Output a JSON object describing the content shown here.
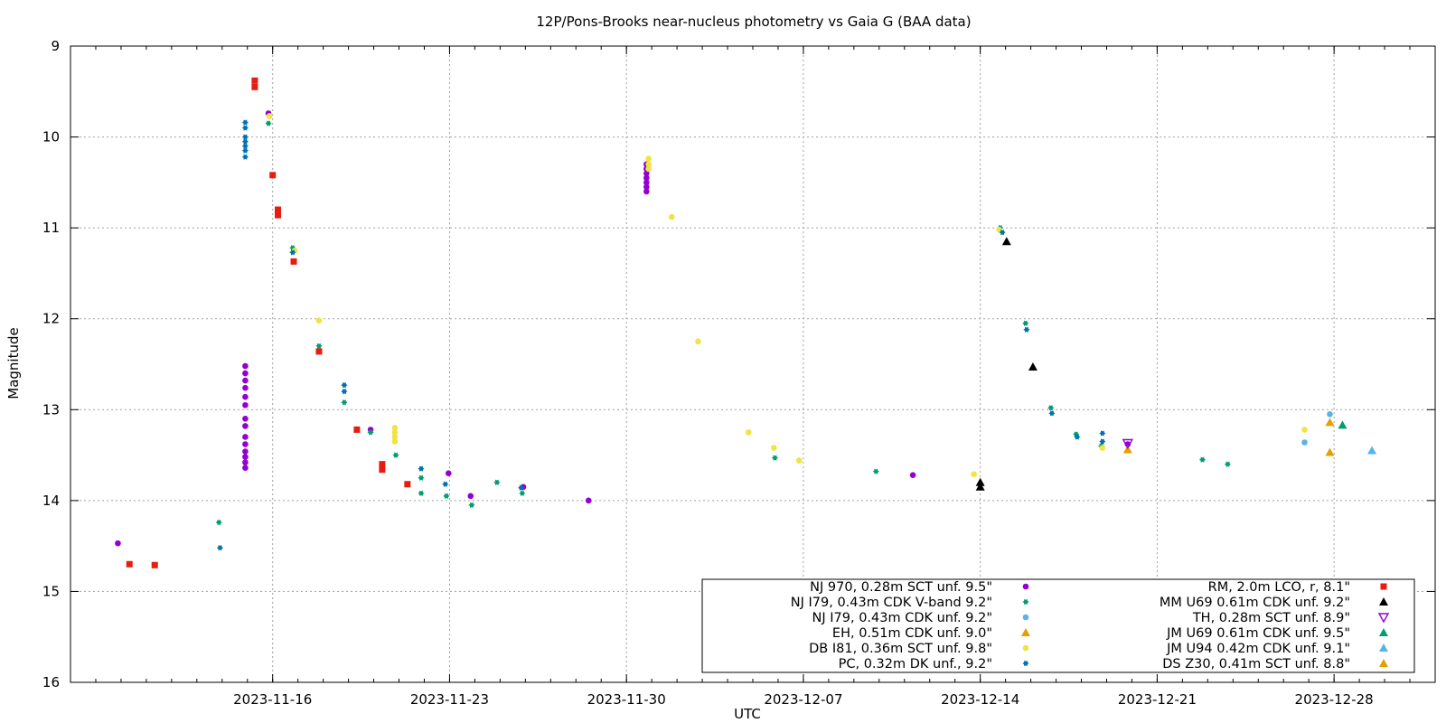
{
  "chart_data": {
    "type": "scatter",
    "title": "12P/Pons-Brooks near-nucleus photometry vs Gaia G (BAA data)",
    "xlabel": "UTC",
    "ylabel": "Magnitude",
    "xlim": [
      "2023-11-08T00:00",
      "2024-01-01T00:00"
    ],
    "ylim": [
      16,
      9
    ],
    "y_inverted": true,
    "grid": true,
    "legend_position": "bottom-right",
    "xticks": [
      "2023-11-16",
      "2023-11-23",
      "2023-11-30",
      "2023-12-07",
      "2023-12-14",
      "2023-12-21",
      "2023-12-28"
    ],
    "yticks": [
      9,
      10,
      11,
      12,
      13,
      14,
      15,
      16
    ],
    "series": [
      {
        "name": "NJ 970, 0.28m SCT unf. 9.5\"",
        "color": "#9400d3",
        "marker": "dot",
        "points": [
          [
            "2023-11-09T21:00",
            14.47
          ],
          [
            "2023-11-14T22:00",
            12.52
          ],
          [
            "2023-11-14T22:00",
            12.6
          ],
          [
            "2023-11-14T22:00",
            12.68
          ],
          [
            "2023-11-14T22:00",
            12.76
          ],
          [
            "2023-11-14T22:00",
            12.86
          ],
          [
            "2023-11-14T22:00",
            12.95
          ],
          [
            "2023-11-14T22:00",
            13.1
          ],
          [
            "2023-11-14T22:00",
            13.18
          ],
          [
            "2023-11-14T22:00",
            13.3
          ],
          [
            "2023-11-14T22:00",
            13.38
          ],
          [
            "2023-11-14T22:00",
            13.46
          ],
          [
            "2023-11-14T22:00",
            13.52
          ],
          [
            "2023-11-14T22:00",
            13.58
          ],
          [
            "2023-11-14T22:00",
            13.64
          ],
          [
            "2023-11-15T20:00",
            9.74
          ],
          [
            "2023-11-19T21:00",
            13.22
          ],
          [
            "2023-11-22T23:00",
            13.7
          ],
          [
            "2023-11-23T20:00",
            13.95
          ],
          [
            "2023-11-25T22:00",
            13.85
          ],
          [
            "2023-11-28T12:00",
            14.0
          ],
          [
            "2023-11-30T19:00",
            10.55
          ],
          [
            "2023-11-30T19:00",
            10.5
          ],
          [
            "2023-11-30T19:00",
            10.45
          ],
          [
            "2023-11-30T19:00",
            10.4
          ],
          [
            "2023-11-30T19:00",
            10.35
          ],
          [
            "2023-11-30T19:00",
            10.3
          ],
          [
            "2023-11-30T19:00",
            10.6
          ],
          [
            "2023-12-11T08:00",
            13.72
          ],
          [
            "2023-12-19T20:00",
            13.38
          ]
        ]
      },
      {
        "name": "NJ I79, 0.43m CDK V-band 9.2\"",
        "color": "#009e73",
        "marker": "star",
        "points": [
          [
            "2023-11-13T21:00",
            14.24
          ],
          [
            "2023-11-15T20:00",
            9.85
          ],
          [
            "2023-11-16T19:00",
            11.22
          ],
          [
            "2023-11-17T20:00",
            12.3
          ],
          [
            "2023-11-18T20:00",
            12.92
          ],
          [
            "2023-11-19T21:00",
            13.25
          ],
          [
            "2023-11-20T21:00",
            13.5
          ],
          [
            "2023-11-21T21:00",
            13.75
          ],
          [
            "2023-11-21T21:00",
            13.92
          ],
          [
            "2023-11-22T21:00",
            13.95
          ],
          [
            "2023-11-23T21:00",
            14.05
          ],
          [
            "2023-11-24T21:00",
            13.8
          ],
          [
            "2023-11-25T21:00",
            13.92
          ],
          [
            "2023-12-05T21:00",
            13.53
          ],
          [
            "2023-12-09T21:00",
            13.68
          ],
          [
            "2023-12-14T19:00",
            11.0
          ],
          [
            "2023-12-15T19:00",
            12.05
          ],
          [
            "2023-12-16T19:00",
            12.98
          ],
          [
            "2023-12-17T19:00",
            13.27
          ],
          [
            "2023-12-18T19:00",
            13.4
          ],
          [
            "2023-12-22T19:00",
            13.55
          ],
          [
            "2023-12-23T19:00",
            13.6
          ]
        ]
      },
      {
        "name": "NJ I79, 0.43m CDK unf. 9.2\"",
        "color": "#56b4e9",
        "marker": "dot",
        "points": [
          [
            "2023-12-26T20:00",
            13.36
          ],
          [
            "2023-12-27T20:00",
            13.05
          ]
        ]
      },
      {
        "name": "EH, 0.51m CDK unf. 9.0\"",
        "color": "#e69f00",
        "marker": "triangle",
        "points": [
          [
            "2023-12-19T20:00",
            13.44
          ],
          [
            "2023-12-27T20:00",
            13.14
          ]
        ]
      },
      {
        "name": "DB I81, 0.36m SCT unf. 9.8\"",
        "color": "#f0e442",
        "marker": "dot",
        "points": [
          [
            "2023-11-15T21:00",
            9.77
          ],
          [
            "2023-11-16T21:00",
            11.25
          ],
          [
            "2023-11-17T20:00",
            12.02
          ],
          [
            "2023-11-20T20:00",
            13.2
          ],
          [
            "2023-11-20T20:00",
            13.25
          ],
          [
            "2023-11-20T20:00",
            13.3
          ],
          [
            "2023-11-20T20:00",
            13.35
          ],
          [
            "2023-11-30T21:00",
            10.24
          ],
          [
            "2023-11-30T21:00",
            10.3
          ],
          [
            "2023-11-30T21:00",
            10.35
          ],
          [
            "2023-12-01T19:00",
            10.88
          ],
          [
            "2023-12-02T20:00",
            12.25
          ],
          [
            "2023-12-04T20:00",
            13.25
          ],
          [
            "2023-12-05T20:00",
            13.42
          ],
          [
            "2023-12-06T20:00",
            13.56
          ],
          [
            "2023-12-13T18:00",
            13.71
          ],
          [
            "2023-12-14T18:00",
            11.02
          ],
          [
            "2023-12-18T20:00",
            13.42
          ],
          [
            "2023-12-26T20:00",
            13.22
          ]
        ]
      },
      {
        "name": "PC, 0.32m DK unf., 9.2\"",
        "color": "#0072b2",
        "marker": "star",
        "points": [
          [
            "2023-11-13T22:00",
            14.52
          ],
          [
            "2023-11-14T22:00",
            9.84
          ],
          [
            "2023-11-14T22:00",
            9.9
          ],
          [
            "2023-11-14T22:00",
            10.0
          ],
          [
            "2023-11-14T22:00",
            10.05
          ],
          [
            "2023-11-14T22:00",
            10.1
          ],
          [
            "2023-11-14T22:00",
            10.15
          ],
          [
            "2023-11-14T22:00",
            10.22
          ],
          [
            "2023-11-16T19:00",
            11.27
          ],
          [
            "2023-11-18T20:00",
            12.73
          ],
          [
            "2023-11-18T20:00",
            12.8
          ],
          [
            "2023-11-21T21:00",
            13.65
          ],
          [
            "2023-11-22T20:00",
            13.82
          ],
          [
            "2023-11-25T20:00",
            13.86
          ],
          [
            "2023-12-14T21:00",
            11.05
          ],
          [
            "2023-12-15T20:00",
            12.12
          ],
          [
            "2023-12-16T20:00",
            13.04
          ],
          [
            "2023-12-17T20:00",
            13.3
          ],
          [
            "2023-12-18T20:00",
            13.26
          ],
          [
            "2023-12-18T20:00",
            13.35
          ]
        ]
      },
      {
        "name": "RM, 2.0m LCO, r, 8.1\"",
        "color": "#e51e10",
        "marker": "square",
        "points": [
          [
            "2023-11-10T08:00",
            14.7
          ],
          [
            "2023-11-11T08:00",
            14.71
          ],
          [
            "2023-11-15T07:00",
            9.38
          ],
          [
            "2023-11-15T07:00",
            9.45
          ],
          [
            "2023-11-16T00:00",
            10.42
          ],
          [
            "2023-11-16T05:00",
            10.8
          ],
          [
            "2023-11-16T05:00",
            10.86
          ],
          [
            "2023-11-16T20:00",
            11.37
          ],
          [
            "2023-11-17T20:00",
            12.36
          ],
          [
            "2023-11-19T08:00",
            13.22
          ],
          [
            "2023-11-20T08:00",
            13.6
          ],
          [
            "2023-11-20T08:00",
            13.66
          ],
          [
            "2023-11-21T08:00",
            13.82
          ]
        ]
      },
      {
        "name": "MM U69 0.61m CDK unf. 9.2\"",
        "color": "#000000",
        "marker": "triangle",
        "points": [
          [
            "2023-12-14T00:00",
            13.8
          ],
          [
            "2023-12-14T00:00",
            13.85
          ],
          [
            "2023-12-15T01:00",
            11.15
          ],
          [
            "2023-12-16T02:00",
            12.53
          ]
        ]
      },
      {
        "name": "TH, 0.28m SCT unf. 8.9\"",
        "color": "#9400d3",
        "marker": "triangle-down-open",
        "points": [
          [
            "2023-12-19T20:00",
            13.37
          ]
        ]
      },
      {
        "name": "JM U69 0.61m CDK unf. 9.5\"",
        "color": "#009e73",
        "marker": "triangle",
        "points": [
          [
            "2023-12-28T08:00",
            13.17
          ]
        ]
      },
      {
        "name": "JM U94 0.42m CDK unf. 9.1\"",
        "color": "#56b4e9",
        "marker": "triangle",
        "points": [
          [
            "2023-12-29T12:00",
            13.45
          ]
        ]
      },
      {
        "name": "DS Z30, 0.41m SCT unf. 8.8\"",
        "color": "#e69f00",
        "marker": "triangle",
        "points": [
          [
            "2023-12-27T20:00",
            13.47
          ]
        ]
      }
    ]
  }
}
